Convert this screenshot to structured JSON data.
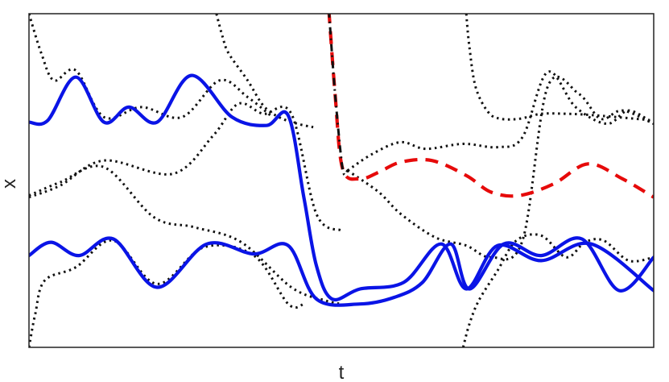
{
  "chart_data": {
    "type": "line",
    "xlabel": "t",
    "ylabel": "x",
    "xlim": [
      0,
      10
    ],
    "ylim": [
      0,
      10
    ],
    "grid": false,
    "ticks_shown": false,
    "colors": {
      "solid": "#0a14e6",
      "dashed": "#e60a0a",
      "dotted": "#111111",
      "frame": "#222222"
    },
    "series": [
      {
        "style": "solid",
        "color": "#0a14e6",
        "x": [
          0,
          0.3,
          0.75,
          1.2,
          1.6,
          2.05,
          2.6,
          3.25,
          3.8,
          4.15,
          4.4,
          4.6,
          4.85,
          5.3,
          6.0,
          6.6,
          7.0,
          7.5,
          8.2,
          9.0,
          10.0
        ],
        "y": [
          6.75,
          6.8,
          8.1,
          6.75,
          7.2,
          6.75,
          8.15,
          6.9,
          6.65,
          6.95,
          4.5,
          2.45,
          1.45,
          1.75,
          1.95,
          3.1,
          1.75,
          3.05,
          2.6,
          3.1,
          1.7
        ]
      },
      {
        "style": "solid",
        "color": "#0a14e6",
        "x": [
          0,
          0.35,
          0.8,
          1.35,
          2.05,
          2.85,
          3.6,
          4.15,
          4.6,
          5.3,
          5.85,
          6.3,
          6.75,
          7.05,
          7.6,
          8.2,
          8.85,
          9.45,
          10.0
        ],
        "y": [
          2.75,
          3.15,
          2.75,
          3.25,
          1.8,
          3.1,
          2.8,
          3.05,
          1.45,
          1.3,
          1.5,
          1.95,
          3.1,
          1.75,
          3.1,
          2.75,
          3.25,
          1.7,
          2.7
        ]
      },
      {
        "style": "dashed",
        "color": "#e60a0a",
        "x": [
          4.8,
          4.9,
          5.02,
          5.3,
          5.6,
          5.95,
          6.45,
          7.0,
          7.4,
          7.85,
          8.4,
          8.95,
          9.5,
          10.0
        ],
        "y": [
          10.1,
          7.6,
          5.35,
          5.05,
          5.25,
          5.55,
          5.6,
          5.15,
          4.65,
          4.55,
          4.9,
          5.5,
          5.05,
          4.5
        ]
      },
      {
        "style": "dotted",
        "color": "#111111",
        "x": [
          0,
          0.2,
          0.4,
          0.75,
          1.2,
          1.8,
          2.45,
          3.05,
          3.5,
          3.9
        ],
        "y": [
          10.0,
          8.8,
          8.0,
          8.3,
          6.9,
          7.2,
          6.9,
          8.0,
          7.5,
          6.9
        ]
      },
      {
        "style": "dotted",
        "color": "#111111",
        "x": [
          0,
          0.5,
          1.2,
          2.3,
          2.95,
          3.35,
          3.75,
          4.2,
          4.6,
          5.0
        ],
        "y": [
          4.5,
          4.85,
          5.6,
          5.2,
          6.35,
          7.3,
          7.0,
          7.0,
          4.0,
          3.5
        ]
      },
      {
        "style": "dotted",
        "color": "#111111",
        "x": [
          0,
          0.5,
          1.2,
          2.0,
          2.65,
          3.4,
          4.2,
          4.75,
          5.0
        ],
        "y": [
          4.55,
          4.95,
          5.4,
          3.9,
          3.6,
          3.15,
          1.8,
          1.4,
          1.3
        ]
      },
      {
        "style": "dotted",
        "color": "#111111",
        "x": [
          0,
          0.1,
          0.25,
          0.75,
          1.35,
          2.05,
          2.8,
          3.6,
          4.15,
          4.4
        ],
        "y": [
          0,
          1.0,
          2.0,
          2.4,
          3.2,
          1.9,
          3.0,
          2.75,
          1.3,
          1.3
        ]
      },
      {
        "style": "dotted",
        "color": "#111111",
        "x": [
          3.0,
          3.1,
          3.2,
          3.5,
          3.75,
          4.0,
          4.3,
          4.55
        ],
        "y": [
          10.0,
          9.3,
          8.8,
          8.0,
          7.25,
          6.9,
          6.7,
          6.6
        ]
      },
      {
        "style": "dotted",
        "color": "#111111",
        "x": [
          5.1,
          5.5,
          5.95,
          6.35,
          6.95,
          7.5,
          7.9,
          8.3,
          8.75,
          9.25,
          9.6,
          10.0
        ],
        "y": [
          5.3,
          5.8,
          6.15,
          5.95,
          6.1,
          6.0,
          6.3,
          8.25,
          7.2,
          6.7,
          7.1,
          6.7
        ]
      },
      {
        "style": "dotted",
        "color": "#111111",
        "x": [
          5.1,
          5.6,
          5.95,
          6.5,
          7.0,
          7.4,
          7.9,
          8.3,
          8.8,
          9.15,
          9.5,
          10.0
        ],
        "y": [
          5.3,
          4.65,
          4.0,
          3.3,
          3.05,
          2.7,
          3.2,
          7.8,
          7.6,
          6.85,
          7.1,
          6.7
        ]
      },
      {
        "style": "dotted",
        "color": "#111111",
        "x": [
          7.0,
          7.05,
          7.15,
          7.35,
          7.55,
          7.85,
          8.2,
          8.6,
          9.1,
          10.0
        ],
        "y": [
          10.0,
          9.0,
          7.8,
          7.05,
          6.85,
          6.85,
          7.0,
          7.0,
          6.95,
          6.8
        ]
      },
      {
        "style": "dotted",
        "color": "#111111",
        "x": [
          6.95,
          7.05,
          7.2,
          7.5,
          7.8,
          8.2,
          8.6,
          8.9,
          9.2,
          9.6,
          10.0
        ],
        "y": [
          0,
          0.7,
          1.4,
          2.3,
          3.2,
          3.35,
          2.7,
          3.15,
          3.2,
          2.6,
          2.7
        ]
      },
      {
        "style": "dashdot",
        "color": "#111111",
        "x": [
          4.8,
          4.9,
          5.02,
          5.1
        ],
        "y": [
          10.1,
          7.6,
          5.35,
          5.3
        ]
      }
    ]
  }
}
